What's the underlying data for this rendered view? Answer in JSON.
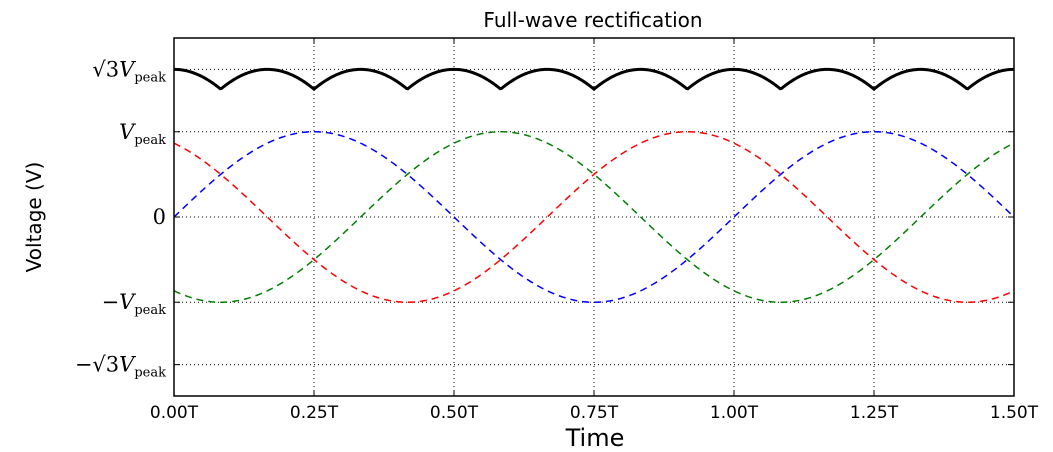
{
  "chart_data": {
    "type": "line",
    "title": "Full-wave rectification",
    "xlabel": "Time",
    "ylabel": "Voltage (V)",
    "x_unit_period": 1,
    "xlim": [
      0,
      1.5
    ],
    "ylim_in_vpeak": [
      -2.1,
      2.1
    ],
    "xticks": [
      0,
      0.25,
      0.5,
      0.75,
      1.0,
      1.25,
      1.5
    ],
    "xtick_labels": [
      "0.00T",
      "0.25T",
      "0.50T",
      "0.75T",
      "1.00T",
      "1.25T",
      "1.50T"
    ],
    "yticks_in_vpeak": [
      -1.732,
      -1,
      0,
      1,
      1.732
    ],
    "ytick_labels": [
      {
        "prefix": "−√3",
        "main": "V",
        "sub": "peak"
      },
      {
        "prefix": "−",
        "main": "V",
        "sub": "peak"
      },
      {
        "prefix": "",
        "main": "0",
        "sub": ""
      },
      {
        "prefix": "",
        "main": "V",
        "sub": "peak"
      },
      {
        "prefix": "√3",
        "main": "V",
        "sub": "peak"
      }
    ],
    "grid": true,
    "series": [
      {
        "formula": "sin(2πt/T)",
        "color": "#0000ff",
        "style": "dashed",
        "phase_deg": 0
      },
      {
        "formula": "sin(2πt/T - 120°)",
        "color": "#008000",
        "style": "dashed",
        "phase_deg": -120
      },
      {
        "formula": "sin(2πt/T + 120°)",
        "color": "#ff0000",
        "style": "dashed",
        "phase_deg": 120
      },
      {
        "formula": "max line-to-line",
        "color": "#000000",
        "style": "solid",
        "rectified": true
      }
    ]
  }
}
